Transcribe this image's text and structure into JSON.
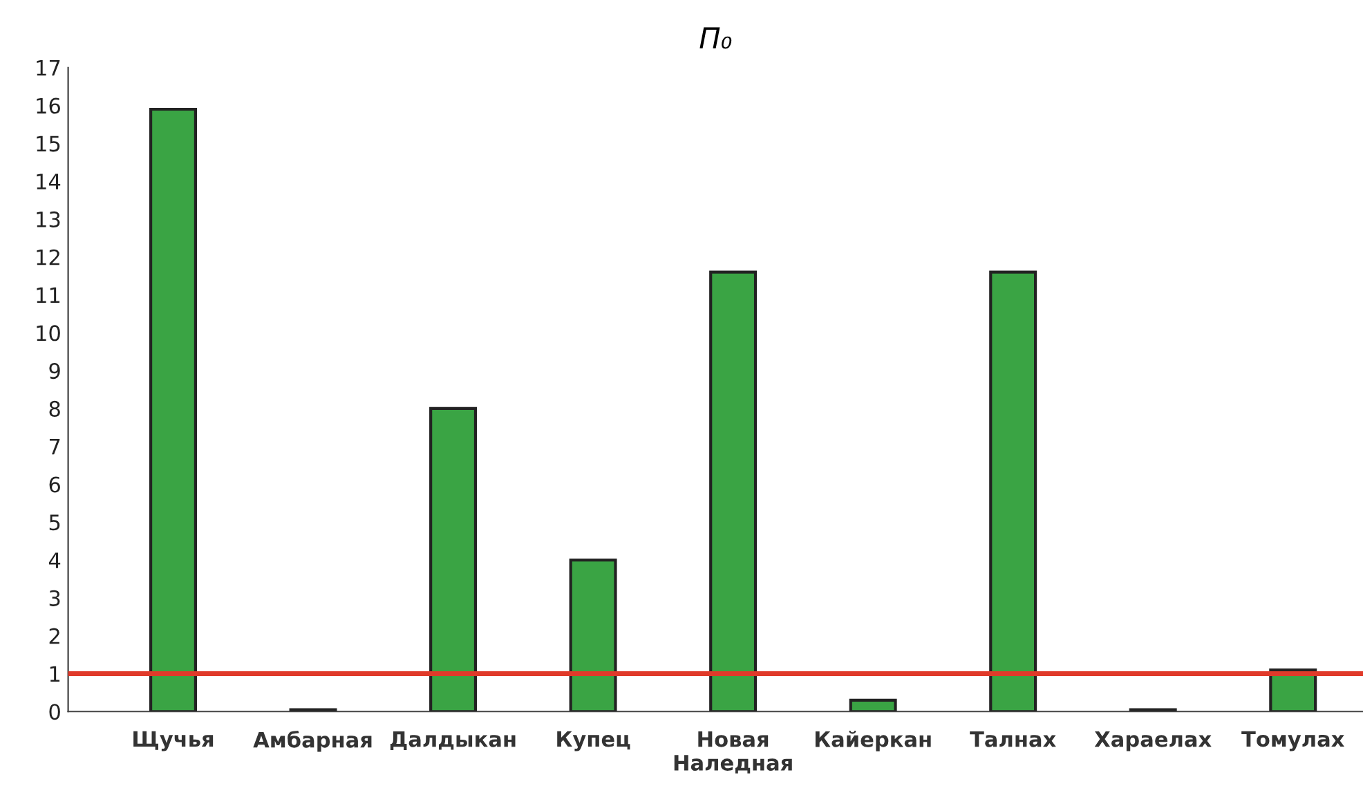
{
  "chart_data": {
    "type": "bar",
    "title": "П₀",
    "categories": [
      "Щучья",
      "Амбарная",
      "Далдыкан",
      "Купец",
      "Новая\nНаледная",
      "Кайеркан",
      "Талнах",
      "Хараелах",
      "Томулах"
    ],
    "values": [
      15.9,
      0.05,
      8.0,
      4.0,
      11.6,
      0.3,
      11.6,
      0.05,
      1.1
    ],
    "color": "#3aa444",
    "ylim": [
      0,
      17
    ],
    "yticks": [
      0,
      1,
      2,
      3,
      4,
      5,
      6,
      7,
      8,
      9,
      10,
      11,
      12,
      13,
      14,
      15,
      16,
      17
    ],
    "ref_lines": [
      {
        "axis": "y",
        "value": 1,
        "color": "#e03a2a",
        "line_style": "solid"
      }
    ],
    "grid": false,
    "legend": false
  }
}
